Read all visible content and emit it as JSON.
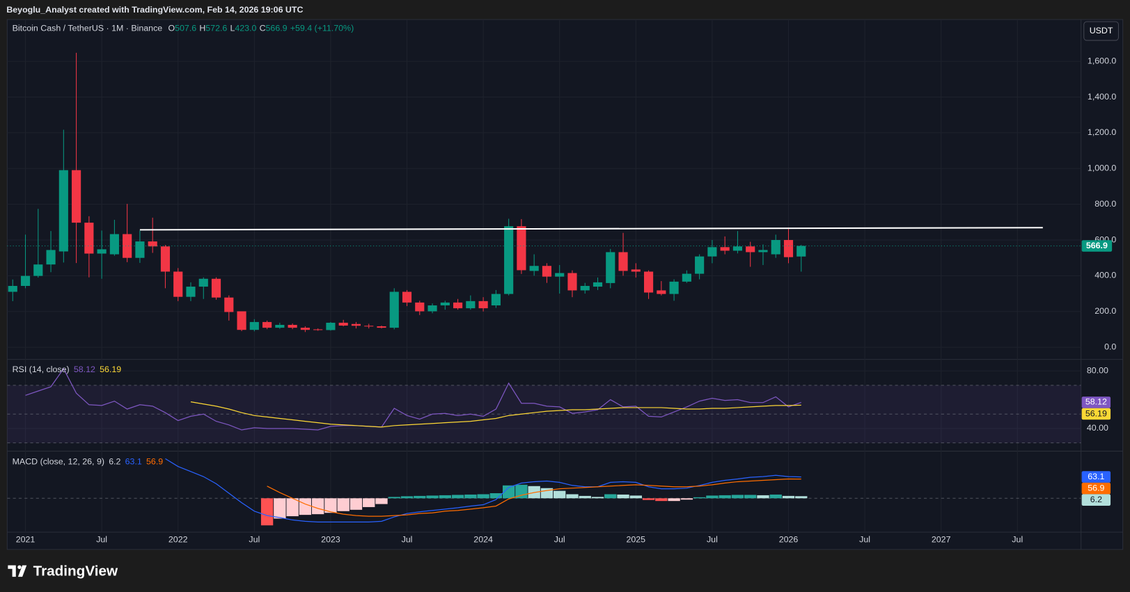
{
  "page": {
    "attribution": "Beyoglu_Analyst created with TradingView.com, Feb 14, 2026 19:06 UTC",
    "logo": "TradingView"
  },
  "chart_data": {
    "type": "candlestick",
    "title": "Bitcoin Cash / TetherUS · 1M · Binance",
    "header_fields": [
      {
        "key": "O",
        "value": "507.6"
      },
      {
        "key": "H",
        "value": "572.6"
      },
      {
        "key": "L",
        "value": "423.0"
      },
      {
        "key": "C",
        "value": "566.9"
      }
    ],
    "change": "+59.4 (+11.70%)",
    "currency": "USDT",
    "up_color": "#089981",
    "down_color": "#f23645",
    "x": [
      "2020-12",
      "2021-01",
      "2021-02",
      "2021-03",
      "2021-04",
      "2021-05",
      "2021-06",
      "2021-07",
      "2021-08",
      "2021-09",
      "2021-10",
      "2021-11",
      "2021-12",
      "2022-01",
      "2022-02",
      "2022-03",
      "2022-04",
      "2022-05",
      "2022-06",
      "2022-07",
      "2022-08",
      "2022-09",
      "2022-10",
      "2022-11",
      "2022-12",
      "2023-01",
      "2023-02",
      "2023-03",
      "2023-04",
      "2023-05",
      "2023-06",
      "2023-07",
      "2023-08",
      "2023-09",
      "2023-10",
      "2023-11",
      "2023-12",
      "2024-01",
      "2024-02",
      "2024-03",
      "2024-04",
      "2024-05",
      "2024-06",
      "2024-07",
      "2024-08",
      "2024-09",
      "2024-10",
      "2024-11",
      "2024-12",
      "2025-01",
      "2025-02",
      "2025-03",
      "2025-04",
      "2025-05",
      "2025-06",
      "2025-07",
      "2025-08",
      "2025-09",
      "2025-10",
      "2025-11",
      "2025-12",
      "2026-01",
      "2026-02"
    ],
    "open": [
      310,
      343,
      399,
      463,
      536,
      991,
      697,
      524,
      520,
      633,
      500,
      592,
      564,
      423,
      282,
      339,
      383,
      278,
      201,
      97,
      141,
      109,
      125,
      109,
      100,
      96,
      137,
      130,
      120,
      117,
      109,
      310,
      250,
      201,
      234,
      250,
      218,
      258,
      234,
      298,
      677,
      427,
      455,
      395,
      415,
      318,
      339,
      359,
      532,
      435,
      423,
      318,
      298,
      367,
      411,
      508,
      560,
      540,
      564,
      532,
      520,
      600,
      507.6
    ],
    "high": [
      379,
      630,
      774,
      650,
      1217,
      1648,
      733,
      653,
      713,
      802,
      653,
      725,
      572,
      443,
      363,
      391,
      391,
      290,
      201,
      157,
      149,
      137,
      133,
      117,
      105,
      141,
      153,
      141,
      131,
      121,
      330,
      320,
      260,
      245,
      260,
      270,
      290,
      280,
      320,
      719,
      717,
      520,
      470,
      460,
      430,
      360,
      390,
      550,
      640,
      470,
      430,
      370,
      380,
      430,
      520,
      600,
      620,
      650,
      590,
      575,
      630,
      670,
      572.6
    ],
    "low": [
      258,
      330,
      390,
      420,
      474,
      471,
      391,
      383,
      512,
      476,
      472,
      528,
      330,
      258,
      258,
      270,
      266,
      149,
      90,
      89,
      101,
      103,
      101,
      85,
      92,
      93,
      117,
      105,
      105,
      105,
      100,
      230,
      180,
      190,
      210,
      210,
      210,
      200,
      220,
      290,
      410,
      400,
      360,
      300,
      280,
      300,
      320,
      330,
      400,
      390,
      270,
      290,
      260,
      360,
      380,
      470,
      520,
      525,
      450,
      460,
      500,
      470,
      423
    ],
    "close": [
      343,
      399,
      463,
      544,
      991,
      697,
      524,
      548,
      633,
      500,
      592,
      564,
      423,
      282,
      339,
      383,
      278,
      197,
      97,
      141,
      109,
      125,
      109,
      97,
      96,
      137,
      121,
      120,
      117,
      109,
      310,
      250,
      201,
      234,
      250,
      218,
      258,
      218,
      298,
      677,
      431,
      455,
      395,
      415,
      318,
      343,
      363,
      532,
      427,
      423,
      306,
      298,
      367,
      411,
      508,
      560,
      540,
      564,
      532,
      544,
      600,
      504,
      566.9
    ],
    "xlim": [
      "2020-11",
      "2027-12"
    ],
    "xticks": [
      {
        "value": "2021-01",
        "label": "2021"
      },
      {
        "value": "2021-07",
        "label": "Jul"
      },
      {
        "value": "2022-01",
        "label": "2022"
      },
      {
        "value": "2022-07",
        "label": "Jul"
      },
      {
        "value": "2023-01",
        "label": "2023"
      },
      {
        "value": "2023-07",
        "label": "Jul"
      },
      {
        "value": "2024-01",
        "label": "2024"
      },
      {
        "value": "2024-07",
        "label": "Jul"
      },
      {
        "value": "2025-01",
        "label": "2025"
      },
      {
        "value": "2025-07",
        "label": "Jul"
      },
      {
        "value": "2026-01",
        "label": "2026"
      },
      {
        "value": "2026-07",
        "label": "Jul"
      },
      {
        "value": "2027-01",
        "label": "2027"
      },
      {
        "value": "2027-07",
        "label": "Jul"
      }
    ],
    "ylim": [
      -64,
      1830
    ],
    "yticks": [
      {
        "value": 0,
        "label": "0.0"
      },
      {
        "value": 200,
        "label": "200.0"
      },
      {
        "value": 400,
        "label": "400.0"
      },
      {
        "value": 600,
        "label": "600.0"
      },
      {
        "value": 800,
        "label": "800.0"
      },
      {
        "value": 1000,
        "label": "1,000.0"
      },
      {
        "value": 1200,
        "label": "1,200.0"
      },
      {
        "value": 1400,
        "label": "1,400.0"
      },
      {
        "value": 1600,
        "label": "1,600.0"
      }
    ],
    "grid": true,
    "trendline": {
      "x": [
        "2021-10",
        "2027-09"
      ],
      "y": [
        657,
        669
      ],
      "color": "#ffffff"
    },
    "rsi": {
      "title": "RSI (14, close)",
      "ylim": [
        25,
        87.5
      ],
      "yticks": [
        {
          "value": 40,
          "label": "40.00"
        },
        {
          "value": 80,
          "label": "80.00"
        }
      ],
      "levels": [
        70,
        50,
        30
      ],
      "series": [
        {
          "name": "RSI",
          "color": "#7e57c2",
          "values": [
            null,
            63,
            66,
            69,
            81.5,
            64.5,
            56.5,
            56,
            59,
            53.5,
            56.5,
            55.5,
            51,
            45.5,
            48.5,
            50,
            45,
            42.5,
            39,
            40.5,
            40,
            40,
            40,
            39.5,
            39,
            41.5,
            42,
            42,
            41.5,
            41,
            54,
            49,
            46.5,
            50,
            50.5,
            49,
            50,
            48.5,
            53.5,
            71.5,
            57.5,
            57.5,
            55.5,
            55,
            50.5,
            51.5,
            53,
            60,
            55,
            55.5,
            48.5,
            48,
            51.5,
            55,
            59,
            61,
            59.5,
            60,
            58,
            58,
            62,
            55,
            58.12
          ]
        },
        {
          "name": "RSI-based MA",
          "color": "#fdd835",
          "values": [
            null,
            null,
            null,
            null,
            null,
            null,
            null,
            null,
            null,
            null,
            null,
            null,
            null,
            null,
            58.5,
            57,
            55.5,
            53.5,
            51,
            49,
            48,
            47,
            46,
            45,
            44,
            43,
            42.5,
            42,
            41.5,
            41,
            42,
            42.5,
            43,
            43.5,
            44,
            44.5,
            45,
            46,
            47,
            49,
            50,
            51,
            52,
            52.5,
            53,
            53,
            53.5,
            54,
            54.5,
            54.5,
            54.5,
            54.5,
            54,
            53.5,
            53.5,
            54,
            54,
            54.5,
            55,
            55.5,
            56,
            56,
            56.19
          ]
        }
      ]
    },
    "macd": {
      "title": "MACD (close, 12, 26, 9)",
      "ylim": [
        -98,
        136
      ],
      "levels": [
        0
      ],
      "histogram": {
        "name": "Histogram",
        "colors": {
          "grow_above": "#26a69a",
          "fall_above": "#b2dfdb",
          "grow_below": "#ffcdd2",
          "fall_below": "#ff5252"
        },
        "values": [
          null,
          null,
          null,
          null,
          null,
          null,
          null,
          null,
          null,
          null,
          null,
          null,
          null,
          null,
          null,
          null,
          null,
          null,
          null,
          null,
          -80,
          -60,
          -53,
          -49,
          -47,
          -43,
          -38,
          -34,
          -26,
          -17,
          4,
          6,
          7,
          8,
          9,
          10,
          11,
          12,
          15,
          38,
          40,
          36,
          30,
          22,
          12,
          7,
          4,
          12,
          11,
          8,
          -5,
          -8,
          -8,
          -4,
          3,
          8,
          9,
          10,
          10,
          9,
          11,
          7,
          6.2
        ]
      },
      "series": [
        {
          "name": "MACD",
          "color": "#2962ff",
          "values": [
            null,
            null,
            null,
            null,
            null,
            null,
            null,
            null,
            null,
            null,
            null,
            null,
            117,
            94,
            79,
            64,
            43,
            15,
            -13,
            -38,
            -51,
            -57,
            -64,
            -68,
            -70,
            -70,
            -70,
            -70,
            -70,
            -68,
            -55,
            -45,
            -40,
            -36,
            -32,
            -28,
            -23,
            -19,
            -4,
            32,
            45,
            49,
            51,
            47,
            38,
            34,
            34,
            47,
            49,
            47,
            34,
            28,
            28,
            30,
            38,
            47,
            53,
            57,
            62,
            64,
            68,
            64,
            63.1
          ]
        },
        {
          "name": "Signal",
          "color": "#ff6d00",
          "values": [
            null,
            null,
            null,
            null,
            null,
            null,
            null,
            null,
            null,
            null,
            null,
            null,
            null,
            null,
            null,
            null,
            null,
            null,
            null,
            null,
            36,
            17,
            0,
            -17,
            -30,
            -40,
            -47,
            -51,
            -53,
            -53,
            -51,
            -49,
            -45,
            -43,
            -38,
            -36,
            -32,
            -28,
            -23,
            -2,
            9,
            17,
            23,
            28,
            30,
            32,
            34,
            36,
            38,
            40,
            38,
            36,
            34,
            34,
            36,
            40,
            45,
            49,
            51,
            53,
            55,
            57,
            56.9
          ]
        }
      ]
    }
  }
}
